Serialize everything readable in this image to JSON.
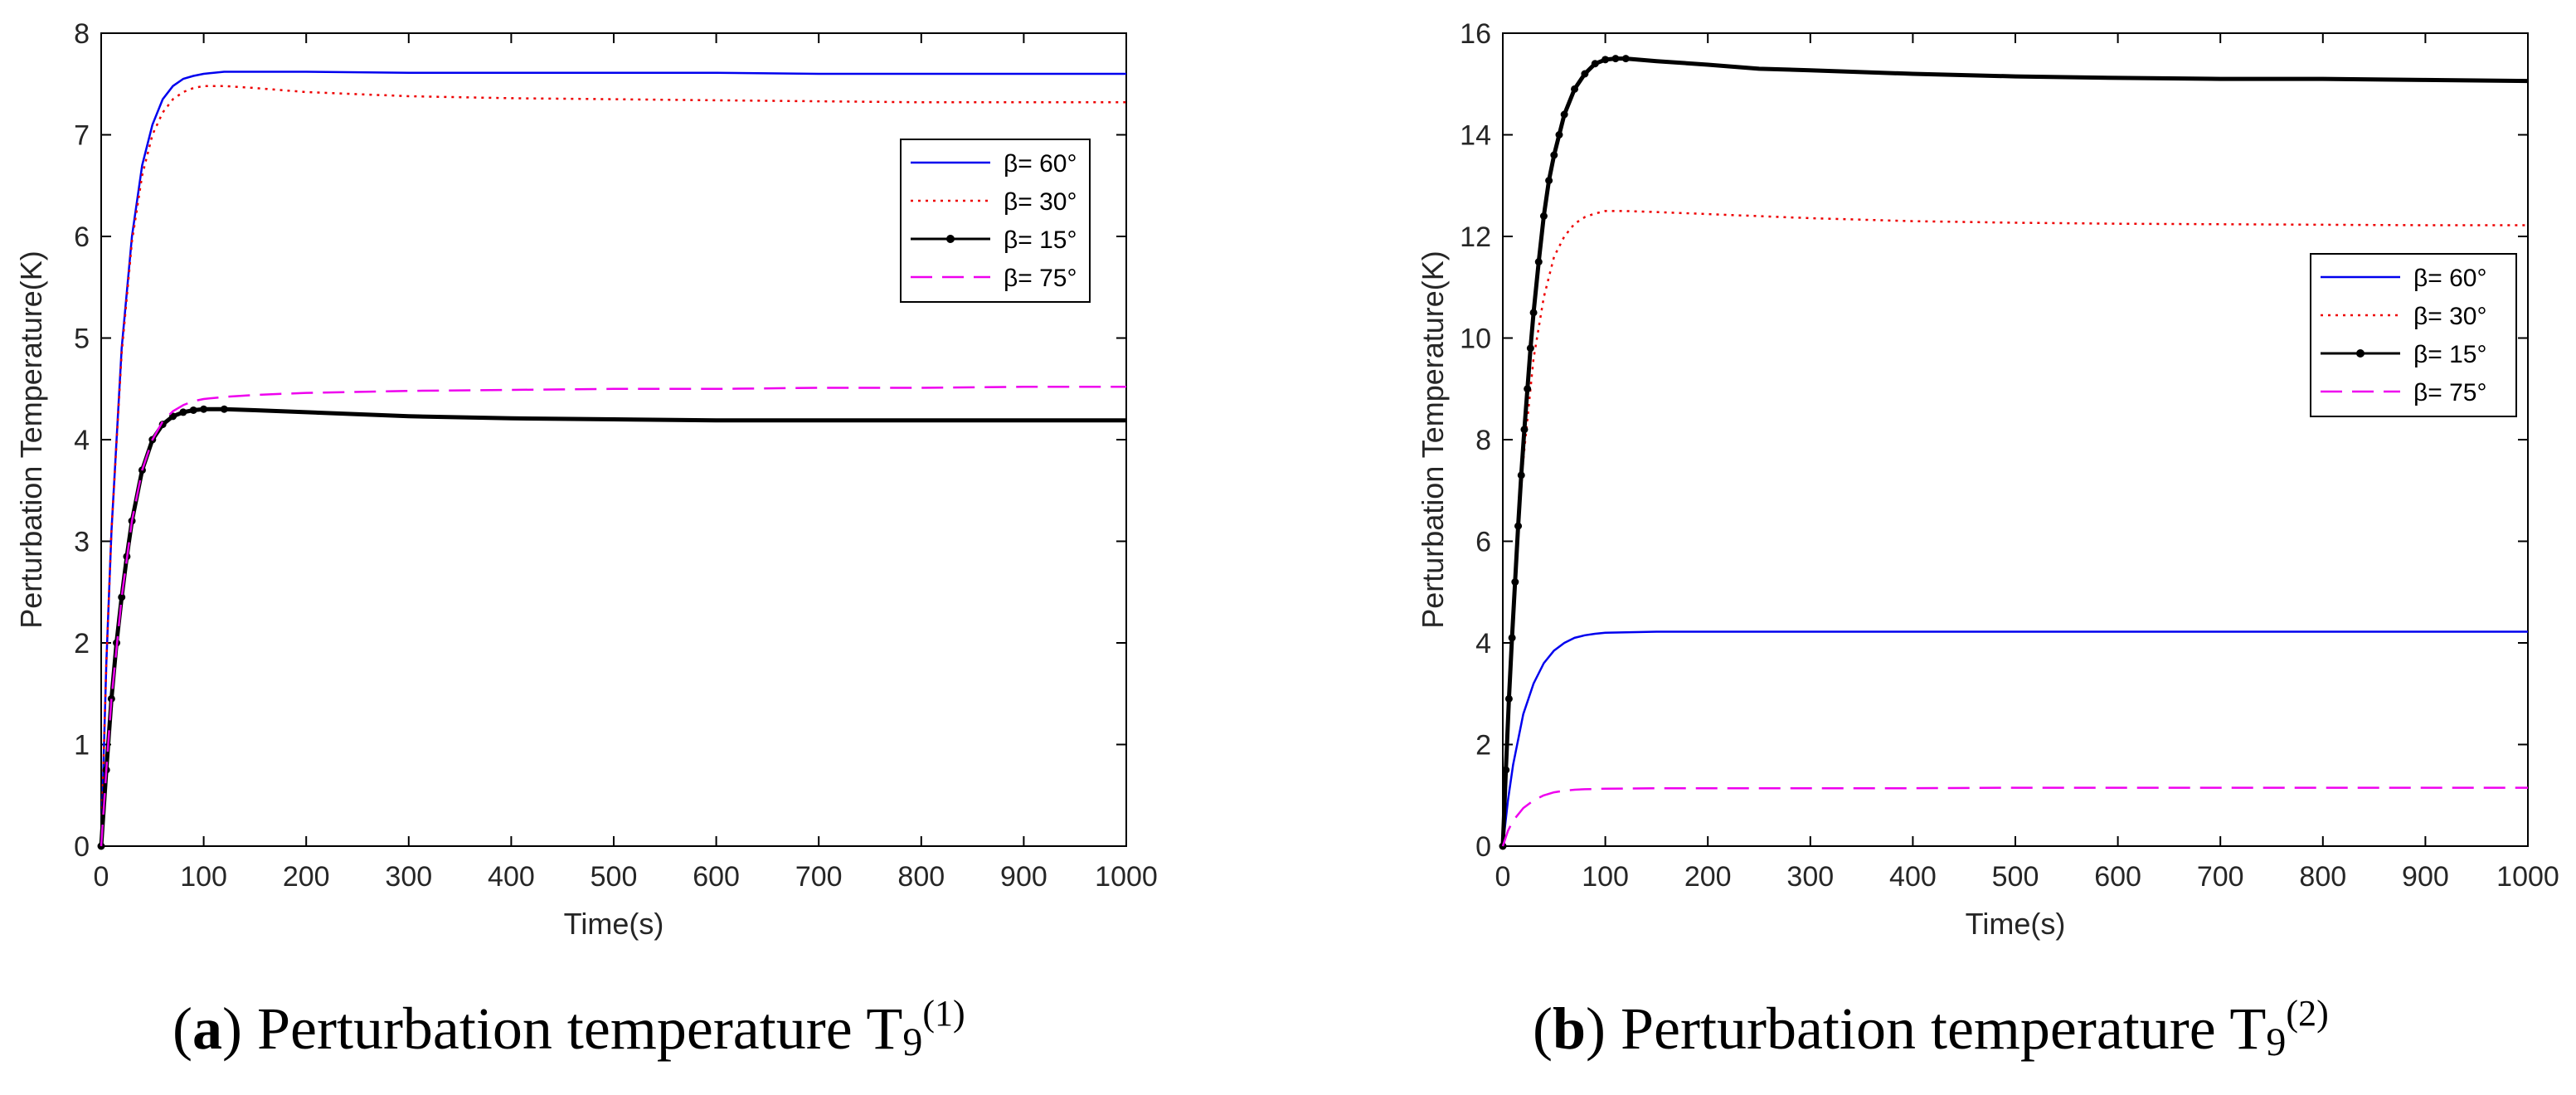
{
  "chart_data": [
    {
      "type": "line",
      "panel_letter": "a",
      "caption_text": "Perturbation temperature T",
      "caption_sub": "9",
      "caption_sup": "(1)",
      "xlabel": "Time(s)",
      "ylabel": "Perturbation Temperature(K)",
      "xlim": [
        0,
        1000
      ],
      "ylim": [
        0,
        8
      ],
      "xticks": [
        0,
        100,
        200,
        300,
        400,
        500,
        600,
        700,
        800,
        900,
        1000
      ],
      "yticks": [
        0,
        1,
        2,
        3,
        4,
        5,
        6,
        7,
        8
      ],
      "grid": false,
      "legend_position": "top-right",
      "series": [
        {
          "name": "β= 60°",
          "color": "#0000ee",
          "style": "solid",
          "x": [
            0,
            5,
            10,
            20,
            30,
            40,
            50,
            60,
            70,
            80,
            90,
            100,
            120,
            150,
            200,
            300,
            400,
            500,
            600,
            700,
            800,
            900,
            1000
          ],
          "y": [
            0,
            1.8,
            3.1,
            4.9,
            6.0,
            6.7,
            7.1,
            7.35,
            7.48,
            7.55,
            7.58,
            7.6,
            7.62,
            7.62,
            7.62,
            7.61,
            7.61,
            7.61,
            7.61,
            7.6,
            7.6,
            7.6,
            7.6
          ]
        },
        {
          "name": "β= 30°",
          "color": "#ee0000",
          "style": "dotted",
          "x": [
            0,
            5,
            10,
            20,
            30,
            40,
            50,
            60,
            70,
            80,
            90,
            100,
            120,
            150,
            200,
            300,
            400,
            500,
            600,
            700,
            800,
            900,
            1000
          ],
          "y": [
            0,
            1.8,
            3.1,
            4.85,
            5.95,
            6.6,
            7.0,
            7.22,
            7.35,
            7.42,
            7.46,
            7.48,
            7.48,
            7.46,
            7.42,
            7.38,
            7.36,
            7.35,
            7.34,
            7.33,
            7.32,
            7.32,
            7.32
          ]
        },
        {
          "name": "β= 15°",
          "color": "#000000",
          "style": "solid-dots",
          "x": [
            0,
            5,
            10,
            15,
            20,
            25,
            30,
            40,
            50,
            60,
            70,
            80,
            90,
            100,
            120,
            150,
            200,
            300,
            400,
            500,
            600,
            700,
            800,
            900,
            1000
          ],
          "y": [
            0,
            0.75,
            1.45,
            2.0,
            2.45,
            2.85,
            3.2,
            3.7,
            4.0,
            4.15,
            4.23,
            4.27,
            4.29,
            4.3,
            4.3,
            4.29,
            4.27,
            4.23,
            4.21,
            4.2,
            4.19,
            4.19,
            4.19,
            4.19,
            4.19
          ]
        },
        {
          "name": "β= 75°",
          "color": "#ee00ee",
          "style": "dashed",
          "x": [
            0,
            5,
            10,
            20,
            30,
            40,
            50,
            60,
            70,
            80,
            90,
            100,
            120,
            150,
            200,
            300,
            400,
            500,
            600,
            700,
            800,
            900,
            1000
          ],
          "y": [
            0,
            0.75,
            1.45,
            2.45,
            3.2,
            3.7,
            4.0,
            4.18,
            4.28,
            4.34,
            4.38,
            4.4,
            4.42,
            4.44,
            4.46,
            4.48,
            4.49,
            4.5,
            4.5,
            4.51,
            4.51,
            4.52,
            4.52
          ]
        }
      ]
    },
    {
      "type": "line",
      "panel_letter": "b",
      "caption_text": "Perturbation temperature T",
      "caption_sub": "9",
      "caption_sup": "(2)",
      "xlabel": "Time(s)",
      "ylabel": "Perturbation Temperature(K)",
      "xlim": [
        0,
        1000
      ],
      "ylim": [
        0,
        16
      ],
      "xticks": [
        0,
        100,
        200,
        300,
        400,
        500,
        600,
        700,
        800,
        900,
        1000
      ],
      "yticks": [
        0,
        2,
        4,
        6,
        8,
        10,
        12,
        14,
        16
      ],
      "grid": false,
      "legend_position": "top-right",
      "series": [
        {
          "name": "β= 60°",
          "color": "#0000ee",
          "style": "solid",
          "x": [
            0,
            5,
            10,
            20,
            30,
            40,
            50,
            60,
            70,
            80,
            90,
            100,
            150,
            200,
            300,
            400,
            500,
            600,
            700,
            800,
            900,
            1000
          ],
          "y": [
            0,
            0.9,
            1.6,
            2.6,
            3.2,
            3.6,
            3.85,
            4.0,
            4.1,
            4.15,
            4.18,
            4.2,
            4.22,
            4.22,
            4.22,
            4.22,
            4.22,
            4.22,
            4.22,
            4.22,
            4.22,
            4.22
          ]
        },
        {
          "name": "β= 30°",
          "color": "#ee0000",
          "style": "dotted",
          "x": [
            0,
            5,
            10,
            15,
            20,
            30,
            40,
            50,
            60,
            70,
            80,
            90,
            100,
            110,
            120,
            150,
            200,
            300,
            400,
            500,
            600,
            700,
            800,
            900,
            1000
          ],
          "y": [
            0,
            2.4,
            4.5,
            6.2,
            7.6,
            9.6,
            10.8,
            11.6,
            12.0,
            12.25,
            12.38,
            12.45,
            12.5,
            12.5,
            12.5,
            12.48,
            12.44,
            12.36,
            12.3,
            12.27,
            12.25,
            12.24,
            12.23,
            12.22,
            12.22
          ]
        },
        {
          "name": "β= 15°",
          "color": "#000000",
          "style": "solid-dots",
          "x": [
            0,
            3,
            6,
            9,
            12,
            15,
            18,
            21,
            24,
            27,
            30,
            35,
            40,
            45,
            50,
            55,
            60,
            70,
            80,
            90,
            100,
            110,
            120,
            150,
            200,
            250,
            300,
            400,
            500,
            600,
            700,
            800,
            900,
            1000
          ],
          "y": [
            0,
            1.5,
            2.9,
            4.1,
            5.2,
            6.3,
            7.3,
            8.2,
            9.0,
            9.8,
            10.5,
            11.5,
            12.4,
            13.1,
            13.6,
            14.0,
            14.4,
            14.9,
            15.2,
            15.4,
            15.48,
            15.5,
            15.5,
            15.45,
            15.38,
            15.3,
            15.27,
            15.2,
            15.15,
            15.12,
            15.1,
            15.1,
            15.08,
            15.06
          ]
        },
        {
          "name": "β= 75°",
          "color": "#ee00ee",
          "style": "dashed",
          "x": [
            0,
            5,
            10,
            20,
            30,
            40,
            50,
            60,
            70,
            80,
            100,
            150,
            200,
            300,
            400,
            500,
            600,
            700,
            800,
            900,
            1000
          ],
          "y": [
            0,
            0.3,
            0.5,
            0.75,
            0.9,
            1.0,
            1.06,
            1.09,
            1.11,
            1.12,
            1.13,
            1.14,
            1.14,
            1.14,
            1.14,
            1.15,
            1.15,
            1.15,
            1.15,
            1.15,
            1.15
          ]
        }
      ]
    }
  ]
}
